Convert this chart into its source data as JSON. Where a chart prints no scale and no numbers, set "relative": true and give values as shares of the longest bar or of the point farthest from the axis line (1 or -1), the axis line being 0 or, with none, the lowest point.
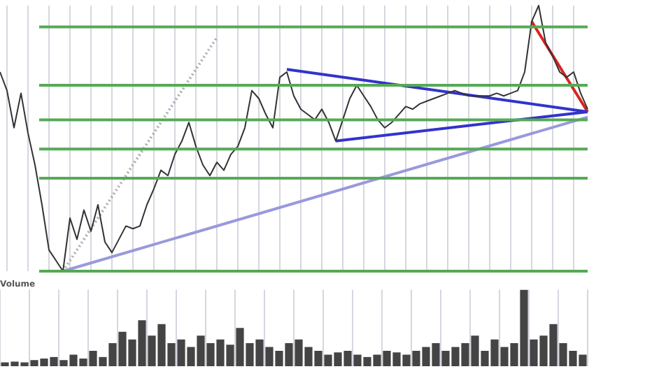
{
  "chart_data": [
    {
      "type": "line",
      "relative": true,
      "grid": "x",
      "legend": false,
      "marker": "none",
      "categories": [
        null,
        null,
        null,
        null,
        null,
        null,
        null,
        null,
        null,
        null,
        null,
        null,
        null,
        null,
        null,
        null,
        null,
        null,
        null,
        null,
        null,
        null,
        null,
        null,
        null,
        null,
        null,
        null,
        null,
        null,
        null,
        null,
        null,
        null,
        null,
        null,
        null,
        null,
        null,
        null,
        null,
        null,
        null,
        null,
        null,
        null,
        null,
        null,
        null,
        null,
        null,
        null,
        null,
        null,
        null,
        null,
        null,
        null,
        null,
        null,
        null,
        null,
        null,
        null,
        null,
        null,
        null,
        null,
        null,
        null,
        null,
        null,
        null,
        null,
        null,
        null,
        null,
        null,
        null,
        null,
        null,
        null,
        null,
        null,
        null
      ],
      "series": [
        {
          "color": "#333333",
          "values": [
            0.75,
            0.68,
            0.54,
            0.67,
            0.52,
            0.4,
            0.25,
            0.08,
            0.04,
            0,
            0.2,
            0.12,
            0.23,
            0.15,
            0.25,
            0.11,
            0.07,
            0.12,
            0.17,
            0.16,
            0.17,
            0.25,
            0.31,
            0.38,
            0.36,
            0.44,
            0.49,
            0.56,
            0.47,
            0.4,
            0.36,
            0.41,
            0.38,
            0.44,
            0.47,
            0.54,
            0.68,
            0.65,
            0.59,
            0.54,
            0.73,
            0.75,
            0.66,
            0.61,
            0.59,
            0.57,
            0.61,
            0.56,
            0.49,
            0.57,
            0.65,
            0.7,
            0.66,
            0.62,
            0.57,
            0.54,
            0.56,
            0.59,
            0.62,
            0.61,
            0.63,
            0.64,
            0.65,
            0.66,
            0.67,
            0.68,
            0.67,
            0.66,
            0.66,
            0.66,
            0.66,
            0.67,
            0.66,
            0.67,
            0.68,
            0.75,
            0.94,
            1,
            0.86,
            0.81,
            0.75,
            0.73,
            0.75,
            0.67,
            0.61
          ]
        },
        {
          "color": "#3333cc",
          "values": [
            null,
            null,
            null,
            null,
            null,
            null,
            null,
            null,
            null,
            null,
            null,
            null,
            null,
            null,
            null,
            null,
            null,
            null,
            null,
            null,
            null,
            null,
            null,
            null,
            null,
            null,
            null,
            null,
            null,
            null,
            null,
            null,
            null,
            null,
            null,
            null,
            null,
            null,
            null,
            null,
            null,
            0.76,
            null,
            null,
            null,
            null,
            null,
            null,
            null,
            null,
            null,
            null,
            null,
            null,
            null,
            null,
            null,
            null,
            null,
            null,
            null,
            null,
            null,
            null,
            null,
            null,
            null,
            null,
            null,
            null,
            null,
            null,
            null,
            null,
            null,
            null,
            null,
            null,
            null,
            null,
            null,
            null,
            null,
            null,
            0.6
          ]
        },
        {
          "color": "#3333cc",
          "values": [
            null,
            null,
            null,
            null,
            null,
            null,
            null,
            null,
            null,
            null,
            null,
            null,
            null,
            null,
            null,
            null,
            null,
            null,
            null,
            null,
            null,
            null,
            null,
            null,
            null,
            null,
            null,
            null,
            null,
            null,
            null,
            null,
            null,
            null,
            null,
            null,
            null,
            null,
            null,
            null,
            null,
            null,
            null,
            null,
            null,
            null,
            null,
            null,
            0.49,
            null,
            null,
            null,
            null,
            null,
            null,
            null,
            null,
            null,
            null,
            null,
            null,
            null,
            null,
            null,
            null,
            null,
            null,
            null,
            null,
            null,
            null,
            null,
            null,
            null,
            null,
            null,
            null,
            null,
            null,
            null,
            null,
            null,
            null,
            null,
            0.6
          ]
        },
        {
          "color": "#9999dd",
          "values": [
            null,
            null,
            null,
            null,
            null,
            null,
            null,
            null,
            null,
            0,
            null,
            null,
            null,
            null,
            null,
            null,
            null,
            null,
            null,
            null,
            null,
            null,
            null,
            null,
            null,
            null,
            null,
            null,
            null,
            null,
            null,
            null,
            null,
            null,
            null,
            null,
            null,
            null,
            null,
            null,
            null,
            null,
            null,
            null,
            null,
            null,
            null,
            null,
            null,
            null,
            null,
            null,
            null,
            null,
            null,
            null,
            null,
            null,
            null,
            null,
            null,
            null,
            null,
            null,
            null,
            null,
            null,
            null,
            null,
            null,
            null,
            null,
            null,
            null,
            null,
            null,
            null,
            null,
            null,
            null,
            null,
            null,
            null,
            null,
            0.58
          ]
        },
        {
          "color": "#aaaaaa",
          "line_style": "dotted",
          "values": [
            null,
            null,
            null,
            null,
            null,
            null,
            null,
            null,
            null,
            0,
            null,
            null,
            null,
            null,
            null,
            null,
            null,
            null,
            null,
            null,
            null,
            null,
            null,
            null,
            null,
            null,
            null,
            null,
            null,
            null,
            null,
            0.88,
            null,
            null,
            null,
            null,
            null,
            null,
            null,
            null,
            null,
            null,
            null,
            null,
            null,
            null,
            null,
            null,
            null,
            null,
            null,
            null,
            null,
            null,
            null,
            null,
            null,
            null,
            null,
            null,
            null,
            null,
            null,
            null,
            null,
            null,
            null,
            null,
            null,
            null,
            null,
            null,
            null,
            null,
            null,
            null,
            null,
            null,
            null,
            null,
            null,
            null,
            null,
            null,
            null
          ]
        },
        {
          "color": "#dd2222",
          "values": [
            null,
            null,
            null,
            null,
            null,
            null,
            null,
            null,
            null,
            null,
            null,
            null,
            null,
            null,
            null,
            null,
            null,
            null,
            null,
            null,
            null,
            null,
            null,
            null,
            null,
            null,
            null,
            null,
            null,
            null,
            null,
            null,
            null,
            null,
            null,
            null,
            null,
            null,
            null,
            null,
            null,
            null,
            null,
            null,
            null,
            null,
            null,
            null,
            null,
            null,
            null,
            null,
            null,
            null,
            null,
            null,
            null,
            null,
            null,
            null,
            null,
            null,
            null,
            null,
            null,
            null,
            null,
            null,
            null,
            null,
            null,
            null,
            null,
            null,
            null,
            null,
            0.94,
            null,
            null,
            null,
            null,
            null,
            null,
            null,
            0.6
          ]
        }
      ],
      "ref_lines": [
        {
          "axis": "y",
          "value": 0.92,
          "color": "#55aa55"
        },
        {
          "axis": "y",
          "value": 0.7,
          "color": "#55aa55"
        },
        {
          "axis": "y",
          "value": 0.57,
          "color": "#55aa55"
        },
        {
          "axis": "y",
          "value": 0.46,
          "color": "#55aa55"
        },
        {
          "axis": "y",
          "value": 0.35,
          "color": "#55aa55"
        },
        {
          "axis": "y",
          "value": 0,
          "color": "#55aa55"
        }
      ]
    },
    {
      "type": "bar",
      "relative": true,
      "title": "Volume",
      "grid": "x",
      "legend": false,
      "color": "#444444",
      "categories": [
        null,
        null,
        null,
        null,
        null,
        null,
        null,
        null,
        null,
        null,
        null,
        null,
        null,
        null,
        null,
        null,
        null,
        null,
        null,
        null,
        null,
        null,
        null,
        null,
        null,
        null,
        null,
        null,
        null,
        null,
        null,
        null,
        null,
        null,
        null,
        null,
        null,
        null,
        null,
        null,
        null,
        null,
        null,
        null,
        null,
        null,
        null,
        null,
        null,
        null,
        null,
        null,
        null,
        null,
        null,
        null,
        null,
        null,
        null,
        null
      ],
      "values": [
        0.05,
        0.06,
        0.05,
        0.08,
        0.1,
        0.12,
        0.08,
        0.15,
        0.1,
        0.2,
        0.12,
        0.3,
        0.45,
        0.35,
        0.6,
        0.4,
        0.55,
        0.3,
        0.35,
        0.25,
        0.4,
        0.3,
        0.35,
        0.28,
        0.5,
        0.3,
        0.35,
        0.25,
        0.2,
        0.3,
        0.35,
        0.25,
        0.2,
        0.15,
        0.18,
        0.2,
        0.15,
        0.12,
        0.15,
        0.2,
        0.18,
        0.15,
        0.2,
        0.25,
        0.3,
        0.2,
        0.25,
        0.3,
        0.4,
        0.2,
        0.35,
        0.25,
        0.3,
        1,
        0.35,
        0.4,
        0.55,
        0.3,
        0.2,
        0.15
      ]
    }
  ]
}
